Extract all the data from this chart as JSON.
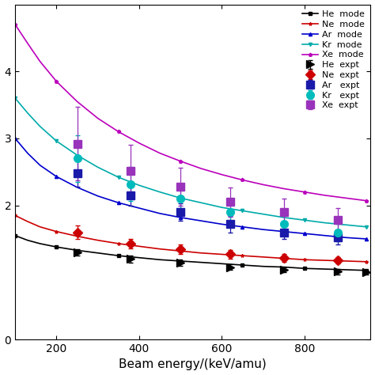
{
  "xlabel": "Beam energy/(keV/amu)",
  "xlim": [
    100,
    960
  ],
  "ylim": [
    0,
    5
  ],
  "yticks": [
    0,
    2,
    3,
    4
  ],
  "xticks": [
    200,
    400,
    600,
    800
  ],
  "colors": {
    "He": "#000000",
    "Ne": "#cc0000",
    "Ar": "#0000cc",
    "Kr": "#00aaaa",
    "Xe": "#bb00bb"
  },
  "expt_colors": {
    "He": "#000000",
    "Ne": "#cc0000",
    "Ar": "#1a1aaa",
    "Kr": "#00bbbb",
    "Xe": "#9933bb"
  },
  "model_x": [
    100,
    130,
    160,
    200,
    250,
    300,
    350,
    400,
    450,
    500,
    550,
    600,
    650,
    700,
    750,
    800,
    850,
    900,
    950
  ],
  "model_y": {
    "He": [
      1.55,
      1.48,
      1.43,
      1.38,
      1.33,
      1.29,
      1.25,
      1.22,
      1.19,
      1.17,
      1.15,
      1.13,
      1.11,
      1.09,
      1.08,
      1.06,
      1.05,
      1.04,
      1.03
    ],
    "Ne": [
      1.85,
      1.76,
      1.68,
      1.61,
      1.54,
      1.48,
      1.43,
      1.39,
      1.35,
      1.32,
      1.29,
      1.27,
      1.25,
      1.23,
      1.21,
      1.19,
      1.18,
      1.17,
      1.16
    ],
    "Ar": [
      3.0,
      2.78,
      2.6,
      2.43,
      2.27,
      2.14,
      2.04,
      1.96,
      1.88,
      1.82,
      1.77,
      1.72,
      1.68,
      1.64,
      1.61,
      1.58,
      1.55,
      1.52,
      1.5
    ],
    "Kr": [
      3.6,
      3.38,
      3.18,
      2.96,
      2.75,
      2.57,
      2.42,
      2.3,
      2.2,
      2.11,
      2.04,
      1.97,
      1.92,
      1.87,
      1.82,
      1.78,
      1.74,
      1.71,
      1.68
    ],
    "Xe": [
      4.7,
      4.42,
      4.15,
      3.85,
      3.55,
      3.3,
      3.1,
      2.93,
      2.78,
      2.66,
      2.55,
      2.46,
      2.38,
      2.31,
      2.25,
      2.2,
      2.15,
      2.11,
      2.07
    ]
  },
  "expt": {
    "He": {
      "x": [
        250,
        380,
        500,
        620,
        750,
        880,
        950
      ],
      "y": [
        1.3,
        1.2,
        1.14,
        1.08,
        1.04,
        1.01,
        1.0
      ],
      "yerr": [
        0.05,
        0.05,
        0.04,
        0.04,
        0.04,
        0.04,
        0.03
      ]
    },
    "Ne": {
      "x": [
        250,
        380,
        500,
        620,
        750,
        880
      ],
      "y": [
        1.6,
        1.43,
        1.35,
        1.27,
        1.22,
        1.18
      ],
      "yerr": [
        0.1,
        0.07,
        0.07,
        0.07,
        0.06,
        0.05
      ]
    },
    "Ar": {
      "x": [
        250,
        380,
        500,
        620,
        750,
        880
      ],
      "y": [
        2.48,
        2.15,
        1.9,
        1.72,
        1.6,
        1.52
      ],
      "yerr": [
        0.2,
        0.15,
        0.13,
        0.12,
        0.1,
        0.1
      ]
    },
    "Kr": {
      "x": [
        250,
        380,
        500,
        620,
        750,
        880
      ],
      "y": [
        2.7,
        2.32,
        2.1,
        1.9,
        1.72,
        1.6
      ],
      "yerr": [
        0.35,
        0.25,
        0.2,
        0.18,
        0.15,
        0.13
      ]
    },
    "Xe": {
      "x": [
        250,
        380,
        500,
        620,
        750,
        880
      ],
      "y": [
        2.92,
        2.52,
        2.28,
        2.05,
        1.9,
        1.78
      ],
      "yerr": [
        0.55,
        0.38,
        0.28,
        0.22,
        0.2,
        0.18
      ]
    }
  },
  "legend_labels": {
    "He_model": "He  mode",
    "Ne_model": "Ne  mode",
    "Ar_model": "Ar  mode",
    "Kr_model": "Kr  mode",
    "Xe_model": "Xe  mode",
    "He_expt": "He  expt",
    "Ne_expt": "Ne  expt",
    "Ar_expt": "Ar   expt",
    "Kr_expt": "Kr   expt",
    "Xe_expt": "Xe  expt"
  }
}
